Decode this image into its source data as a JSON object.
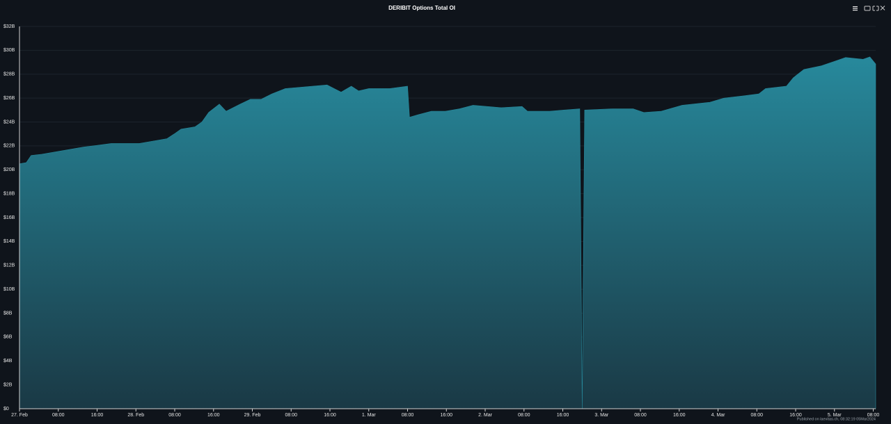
{
  "chart_data": {
    "type": "area",
    "title": "DERIBIT Options Total OI",
    "footer": "Published on laevitas.ch, 08:32:19 05Mar2024",
    "color_top": "#27899c",
    "color_bottom": "#1a3945",
    "grid": true,
    "x": [
      0,
      1.4,
      2.4,
      4.6,
      7.5,
      10.3,
      13.2,
      16.1,
      18.9,
      21.8,
      24.7,
      27.5,
      30.4,
      31.9,
      33.3,
      36.2,
      37.6,
      39.0,
      41.2,
      42.6,
      45.5,
      47.6,
      49.8,
      52.0,
      54.8,
      63.4,
      66.3,
      68.4,
      69.9,
      72.0,
      76.3,
      80.0,
      80.4,
      82.1,
      84.9,
      87.8,
      90.7,
      93.5,
      96.4,
      99.3,
      103.6,
      104.7,
      109.3,
      112.2,
      115.5,
      116.0,
      116.5,
      122.2,
      126.5,
      128.7,
      132.3,
      136.6,
      142.3,
      145.2,
      149.5,
      152.4,
      153.8,
      158.1,
      159.5,
      161.7,
      165.3,
      168.2,
      170.3,
      173.9,
      175.3,
      176.5
    ],
    "values": [
      20.5,
      20.6,
      21.2,
      21.3,
      21.5,
      21.7,
      21.9,
      22.05,
      22.2,
      22.2,
      22.2,
      22.4,
      22.6,
      23.0,
      23.4,
      23.6,
      24.0,
      24.8,
      25.5,
      24.9,
      25.5,
      25.9,
      25.9,
      26.35,
      26.8,
      27.1,
      26.5,
      27.0,
      26.6,
      26.8,
      26.8,
      27.0,
      24.4,
      24.6,
      24.9,
      24.9,
      25.1,
      25.4,
      25.3,
      25.2,
      25.3,
      24.9,
      24.9,
      25.0,
      25.1,
      0,
      25.0,
      25.1,
      25.1,
      24.8,
      24.9,
      25.4,
      25.65,
      26.0,
      26.2,
      26.35,
      26.8,
      27.0,
      27.7,
      28.4,
      28.7,
      29.1,
      29.4,
      29.25,
      29.45,
      28.85
    ],
    "xlim": [
      0,
      176.5
    ],
    "xticks": [
      {
        "value": 0,
        "label": "27. Feb"
      },
      {
        "value": 8,
        "label": "08:00"
      },
      {
        "value": 16,
        "label": "16:00"
      },
      {
        "value": 24,
        "label": "28. Feb"
      },
      {
        "value": 32,
        "label": "08:00"
      },
      {
        "value": 40,
        "label": "16:00"
      },
      {
        "value": 48,
        "label": "29. Feb"
      },
      {
        "value": 56,
        "label": "08:00"
      },
      {
        "value": 64,
        "label": "16:00"
      },
      {
        "value": 72,
        "label": "1. Mar"
      },
      {
        "value": 80,
        "label": "08:00"
      },
      {
        "value": 88,
        "label": "16:00"
      },
      {
        "value": 96,
        "label": "2. Mar"
      },
      {
        "value": 104,
        "label": "08:00"
      },
      {
        "value": 112,
        "label": "16:00"
      },
      {
        "value": 120,
        "label": "3. Mar"
      },
      {
        "value": 128,
        "label": "08:00"
      },
      {
        "value": 136,
        "label": "16:00"
      },
      {
        "value": 144,
        "label": "4. Mar"
      },
      {
        "value": 152,
        "label": "08:00"
      },
      {
        "value": 160,
        "label": "16:00"
      },
      {
        "value": 168,
        "label": "5. Mar"
      },
      {
        "value": 176,
        "label": "08:00"
      }
    ],
    "ylim": [
      0,
      32
    ],
    "yticks": [
      {
        "value": 0,
        "label": "$0"
      },
      {
        "value": 2,
        "label": "$2B"
      },
      {
        "value": 4,
        "label": "$4B"
      },
      {
        "value": 6,
        "label": "$6B"
      },
      {
        "value": 8,
        "label": "$8B"
      },
      {
        "value": 10,
        "label": "$10B"
      },
      {
        "value": 12,
        "label": "$12B"
      },
      {
        "value": 14,
        "label": "$14B"
      },
      {
        "value": 16,
        "label": "$16B"
      },
      {
        "value": 18,
        "label": "$18B"
      },
      {
        "value": 20,
        "label": "$20B"
      },
      {
        "value": 22,
        "label": "$22B"
      },
      {
        "value": 24,
        "label": "$24B"
      },
      {
        "value": 26,
        "label": "$26B"
      },
      {
        "value": 28,
        "label": "$28B"
      },
      {
        "value": 30,
        "label": "$30B"
      },
      {
        "value": 32,
        "label": "$32B"
      }
    ]
  }
}
